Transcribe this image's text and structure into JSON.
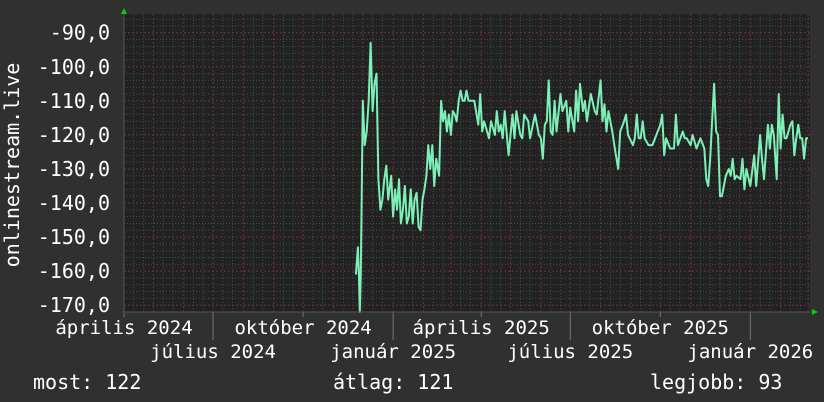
{
  "chart_data": {
    "type": "line",
    "title": "",
    "ylabel": "onlinestream.live",
    "xlabel": "",
    "xlim": [
      "2024-04-01",
      "2026-03-03"
    ],
    "ylim": [
      -172,
      -84.5
    ],
    "grid": true,
    "y_ticks": [
      -90,
      -100,
      -110,
      -120,
      -130,
      -140,
      -150,
      -160,
      -170
    ],
    "y_tick_labels": [
      "-90,0",
      "-100,0",
      "-110,0",
      "-120,0",
      "-130,0",
      "-140,0",
      "-150,0",
      "-160,0",
      "-170,0"
    ],
    "x_ticks": [
      "2024-04-01",
      "2024-07-01",
      "2024-10-01",
      "2025-01-01",
      "2025-04-01",
      "2025-07-01",
      "2025-10-01",
      "2026-01-01"
    ],
    "x_tick_labels": [
      "április 2024",
      "július 2024",
      "október 2024",
      "január 2025",
      "április 2025",
      "július 2025",
      "október 2025",
      "január 2026"
    ],
    "colors": {
      "background": "#303030",
      "plot": "#222222",
      "line": "#7df0b8",
      "grid_minor": "#4a4a4a",
      "grid_major": "#6a3434",
      "arrow": "#00d000",
      "text": "#ffffff"
    },
    "series": [
      {
        "points": [
          [
            "2024-11-24",
            -161
          ],
          [
            "2024-11-26",
            -153
          ],
          [
            "2024-11-27",
            -161
          ],
          [
            "2024-11-28",
            -172
          ],
          [
            "2024-11-29",
            -161
          ],
          [
            "2024-12-01",
            -110
          ],
          [
            "2024-12-03",
            -123
          ],
          [
            "2024-12-05",
            -119
          ],
          [
            "2024-12-07",
            -110
          ],
          [
            "2024-12-09",
            -93
          ],
          [
            "2024-12-11",
            -113
          ],
          [
            "2024-12-13",
            -105
          ],
          [
            "2024-12-15",
            -102
          ],
          [
            "2024-12-17",
            -133
          ],
          [
            "2024-12-19",
            -142
          ],
          [
            "2024-12-21",
            -139
          ],
          [
            "2024-12-23",
            -133
          ],
          [
            "2024-12-25",
            -129
          ],
          [
            "2024-12-27",
            -139
          ],
          [
            "2024-12-30",
            -132
          ],
          [
            "2025-01-01",
            -144
          ],
          [
            "2025-01-03",
            -136
          ],
          [
            "2025-01-05",
            -142
          ],
          [
            "2025-01-07",
            -133
          ],
          [
            "2025-01-09",
            -146
          ],
          [
            "2025-01-11",
            -142
          ],
          [
            "2025-01-13",
            -135
          ],
          [
            "2025-01-15",
            -146
          ],
          [
            "2025-01-17",
            -144
          ],
          [
            "2025-01-19",
            -136
          ],
          [
            "2025-01-21",
            -146
          ],
          [
            "2025-01-23",
            -139
          ],
          [
            "2025-01-25",
            -137
          ],
          [
            "2025-01-27",
            -147
          ],
          [
            "2025-01-29",
            -148
          ],
          [
            "2025-01-31",
            -139
          ],
          [
            "2025-02-02",
            -136
          ],
          [
            "2025-02-04",
            -132
          ],
          [
            "2025-02-06",
            -123
          ],
          [
            "2025-02-08",
            -130
          ],
          [
            "2025-02-10",
            -123
          ],
          [
            "2025-02-12",
            -135
          ],
          [
            "2025-02-14",
            -127
          ],
          [
            "2025-02-17",
            -132
          ],
          [
            "2025-02-19",
            -110
          ],
          [
            "2025-02-21",
            -116
          ],
          [
            "2025-02-23",
            -113
          ],
          [
            "2025-02-25",
            -119
          ],
          [
            "2025-02-27",
            -114
          ],
          [
            "2025-03-01",
            -120
          ],
          [
            "2025-03-03",
            -113
          ],
          [
            "2025-03-05",
            -114
          ],
          [
            "2025-03-07",
            -116
          ],
          [
            "2025-03-09",
            -110
          ],
          [
            "2025-03-11",
            -107
          ],
          [
            "2025-03-13",
            -110
          ],
          [
            "2025-03-15",
            -110
          ],
          [
            "2025-03-17",
            -107
          ],
          [
            "2025-03-19",
            -110
          ],
          [
            "2025-03-21",
            -110
          ],
          [
            "2025-03-25",
            -110
          ],
          [
            "2025-03-29",
            -117
          ],
          [
            "2025-03-31",
            -108
          ],
          [
            "2025-04-02",
            -119
          ],
          [
            "2025-04-04",
            -116
          ],
          [
            "2025-04-09",
            -121
          ],
          [
            "2025-04-11",
            -116
          ],
          [
            "2025-04-15",
            -120
          ],
          [
            "2025-04-17",
            -113
          ],
          [
            "2025-04-19",
            -119
          ],
          [
            "2025-04-21",
            -117
          ],
          [
            "2025-04-23",
            -121
          ],
          [
            "2025-04-25",
            -113
          ],
          [
            "2025-04-29",
            -126
          ],
          [
            "2025-05-03",
            -114
          ],
          [
            "2025-05-05",
            -121
          ],
          [
            "2025-05-07",
            -113
          ],
          [
            "2025-05-11",
            -120
          ],
          [
            "2025-05-13",
            -121
          ],
          [
            "2025-05-15",
            -114
          ],
          [
            "2025-05-19",
            -116
          ],
          [
            "2025-05-21",
            -121
          ],
          [
            "2025-05-26",
            -114
          ],
          [
            "2025-05-30",
            -120
          ],
          [
            "2025-06-01",
            -121
          ],
          [
            "2025-06-03",
            -127
          ],
          [
            "2025-06-05",
            -117
          ],
          [
            "2025-06-07",
            -116
          ],
          [
            "2025-06-09",
            -104
          ],
          [
            "2025-06-11",
            -119
          ],
          [
            "2025-06-13",
            -120
          ],
          [
            "2025-06-15",
            -110
          ],
          [
            "2025-06-17",
            -119
          ],
          [
            "2025-06-21",
            -108
          ],
          [
            "2025-06-23",
            -113
          ],
          [
            "2025-06-27",
            -110
          ],
          [
            "2025-06-29",
            -119
          ],
          [
            "2025-07-01",
            -112
          ],
          [
            "2025-07-05",
            -119
          ],
          [
            "2025-07-07",
            -107
          ],
          [
            "2025-07-09",
            -116
          ],
          [
            "2025-07-11",
            -105
          ],
          [
            "2025-07-14",
            -113
          ],
          [
            "2025-07-16",
            -110
          ],
          [
            "2025-07-18",
            -116
          ],
          [
            "2025-07-22",
            -108
          ],
          [
            "2025-07-26",
            -113
          ],
          [
            "2025-07-28",
            -114
          ],
          [
            "2025-08-01",
            -104
          ],
          [
            "2025-08-03",
            -116
          ],
          [
            "2025-08-05",
            -111
          ],
          [
            "2025-08-07",
            -119
          ],
          [
            "2025-08-09",
            -113
          ],
          [
            "2025-08-13",
            -119
          ],
          [
            "2025-08-15",
            -123
          ],
          [
            "2025-08-19",
            -130
          ],
          [
            "2025-08-21",
            -119
          ],
          [
            "2025-08-25",
            -116
          ],
          [
            "2025-08-27",
            -114
          ],
          [
            "2025-08-29",
            -120
          ],
          [
            "2025-09-03",
            -123
          ],
          [
            "2025-09-05",
            -121
          ],
          [
            "2025-09-07",
            -114
          ],
          [
            "2025-09-09",
            -121
          ],
          [
            "2025-09-11",
            -121
          ],
          [
            "2025-09-13",
            -116
          ],
          [
            "2025-09-15",
            -121
          ],
          [
            "2025-09-19",
            -123
          ],
          [
            "2025-09-23",
            -123
          ],
          [
            "2025-09-27",
            -120
          ],
          [
            "2025-10-01",
            -117
          ],
          [
            "2025-10-03",
            -114
          ],
          [
            "2025-10-05",
            -126
          ],
          [
            "2025-10-07",
            -121
          ],
          [
            "2025-10-11",
            -124
          ],
          [
            "2025-10-15",
            -124
          ],
          [
            "2025-10-17",
            -114
          ],
          [
            "2025-10-19",
            -123
          ],
          [
            "2025-10-24",
            -119
          ],
          [
            "2025-10-26",
            -121
          ],
          [
            "2025-10-28",
            -121
          ],
          [
            "2025-11-01",
            -123
          ],
          [
            "2025-11-03",
            -120
          ],
          [
            "2025-11-07",
            -124
          ],
          [
            "2025-11-11",
            -121
          ],
          [
            "2025-11-15",
            -124
          ],
          [
            "2025-11-17",
            -133
          ],
          [
            "2025-11-19",
            -135
          ],
          [
            "2025-11-21",
            -127
          ],
          [
            "2025-11-23",
            -116
          ],
          [
            "2025-11-25",
            -105
          ],
          [
            "2025-11-27",
            -119
          ],
          [
            "2025-11-29",
            -120
          ],
          [
            "2025-12-01",
            -138
          ],
          [
            "2025-12-03",
            -138
          ],
          [
            "2025-12-07",
            -132
          ],
          [
            "2025-12-10",
            -130
          ],
          [
            "2025-12-12",
            -132
          ],
          [
            "2025-12-14",
            -127
          ],
          [
            "2025-12-16",
            -133
          ],
          [
            "2025-12-18",
            -132
          ],
          [
            "2025-12-22",
            -133
          ],
          [
            "2025-12-24",
            -127
          ],
          [
            "2025-12-26",
            -136
          ],
          [
            "2025-12-28",
            -130
          ],
          [
            "2026-01-01",
            -135
          ],
          [
            "2026-01-05",
            -126
          ],
          [
            "2026-01-07",
            -135
          ],
          [
            "2026-01-11",
            -120
          ],
          [
            "2026-01-13",
            -127
          ],
          [
            "2026-01-15",
            -133
          ],
          [
            "2026-01-19",
            -117
          ],
          [
            "2026-01-21",
            -124
          ],
          [
            "2026-01-23",
            -117
          ],
          [
            "2026-01-25",
            -120
          ],
          [
            "2026-01-28",
            -133
          ],
          [
            "2026-01-30",
            -108
          ],
          [
            "2026-02-01",
            -124
          ],
          [
            "2026-02-03",
            -114
          ],
          [
            "2026-02-05",
            -121
          ],
          [
            "2026-02-07",
            -121
          ],
          [
            "2026-02-11",
            -117
          ],
          [
            "2026-02-13",
            -116
          ],
          [
            "2026-02-15",
            -126
          ],
          [
            "2026-02-17",
            -121
          ],
          [
            "2026-02-19",
            -117
          ],
          [
            "2026-02-21",
            -121
          ],
          [
            "2026-02-23",
            -121
          ],
          [
            "2026-02-25",
            -127
          ],
          [
            "2026-02-27",
            -121
          ],
          [
            "2026-03-01",
            -121
          ]
        ]
      }
    ]
  },
  "stats": {
    "current_label": "most: 122",
    "average_label": "átlag: 121",
    "best_label": "legjobb: 93"
  }
}
